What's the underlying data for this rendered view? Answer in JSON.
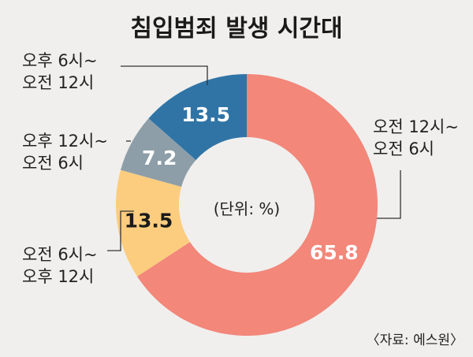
{
  "title": "침입범죄 발생 시간대",
  "unit_label": "(단위: %)",
  "source": "〈자료: 에스원〉",
  "chart_data": {
    "type": "pie",
    "style": "donut",
    "unit": "%",
    "categories": [
      [
        "오전 12시~",
        "오전 6시"
      ],
      [
        "오전 6시~",
        "오후 12시"
      ],
      [
        "오후 12시~",
        "오전 6시"
      ],
      [
        "오후 6시~",
        "오전 12시"
      ]
    ],
    "values": [
      65.8,
      13.5,
      7.2,
      13.5
    ],
    "value_labels": [
      "65.8",
      "13.5",
      "7.2",
      "13.5"
    ],
    "colors": [
      "#f2877a",
      "#fccd7e",
      "#8d9ea8",
      "#3074a6"
    ],
    "value_text_colors": [
      "#ffffff",
      "#1a1a1a",
      "#ffffff",
      "#ffffff"
    ],
    "start_at": "12 o'clock",
    "direction": "clockwise"
  }
}
